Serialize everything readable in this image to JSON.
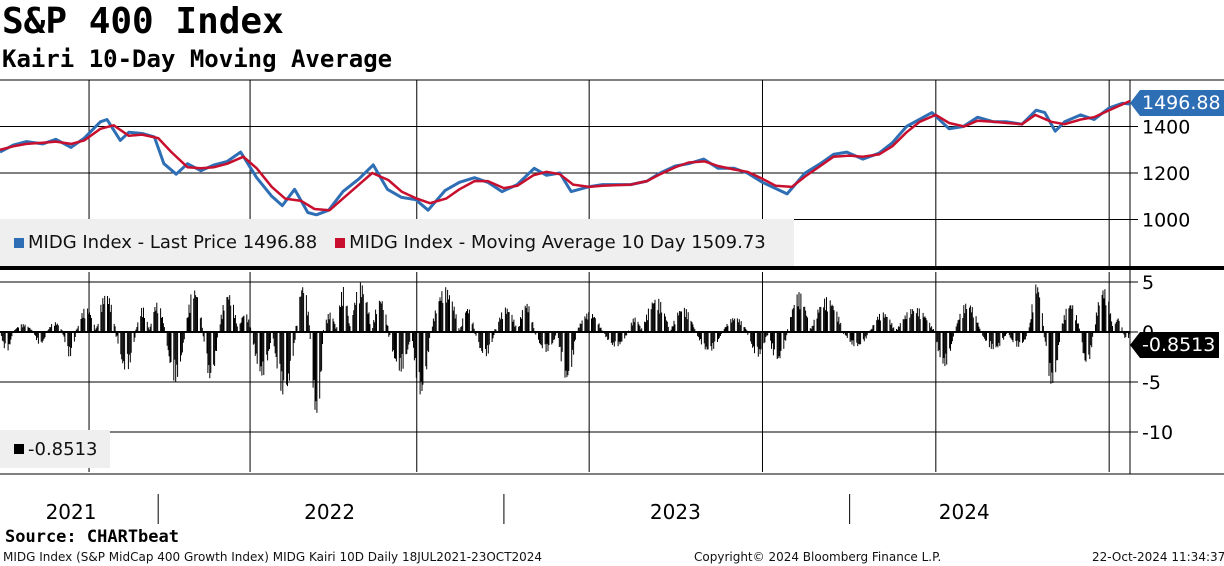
{
  "header": {
    "title": "S&P 400 Index",
    "subtitle": "Kairi 10-Day Moving Average"
  },
  "footer": {
    "source": "Source: CHARTbeat",
    "description": "MIDG Index (S&P MidCap 400 Growth Index) MIDG Kairi 10D  Daily 18JUL2021-23OCT2024",
    "copyright": "Copyright© 2024 Bloomberg Finance L.P.",
    "timestamp": "22-Oct-2024 11:34:37"
  },
  "colors": {
    "price": "#2e6eb5",
    "ma": "#c8102e",
    "kairi": "#000000",
    "grid": "#000000",
    "legend_bg": "#efefef",
    "price_badge_bg": "#2e6eb5",
    "ma_badge_bg": "#c8102e",
    "kairi_badge_bg": "#000000"
  },
  "chart_data": [
    {
      "type": "line",
      "panel": "price",
      "ylim": [
        800,
        1600
      ],
      "yticks": [
        1000,
        1200,
        1400
      ],
      "ytick_labels": [
        "1000",
        "1200",
        "1400"
      ],
      "grid": true,
      "legend_position": "bottom-left",
      "x_years": [
        "2021",
        "2022",
        "2023",
        "2024"
      ],
      "x_range": [
        "2021-07-18",
        "2024-10-23"
      ],
      "series": [
        {
          "name": "MIDG Index - Last Price 1496.88",
          "color": "#2e6eb5",
          "last_value_label": "1496.88",
          "x": [
            "2021-07-18",
            "2021-08-01",
            "2021-08-15",
            "2021-09-01",
            "2021-09-15",
            "2021-10-01",
            "2021-10-15",
            "2021-11-01",
            "2021-11-08",
            "2021-11-22",
            "2021-12-01",
            "2021-12-15",
            "2021-12-28",
            "2022-01-07",
            "2022-01-20",
            "2022-02-01",
            "2022-02-15",
            "2022-03-01",
            "2022-03-15",
            "2022-03-29",
            "2022-04-15",
            "2022-05-01",
            "2022-05-12",
            "2022-05-25",
            "2022-06-08",
            "2022-06-17",
            "2022-06-30",
            "2022-07-15",
            "2022-08-01",
            "2022-08-16",
            "2022-08-31",
            "2022-09-15",
            "2022-09-30",
            "2022-10-13",
            "2022-10-31",
            "2022-11-15",
            "2022-12-01",
            "2022-12-15",
            "2022-12-30",
            "2023-01-15",
            "2023-02-02",
            "2023-02-15",
            "2023-03-01",
            "2023-03-13",
            "2023-03-31",
            "2023-04-15",
            "2023-05-01",
            "2023-05-15",
            "2023-06-01",
            "2023-06-15",
            "2023-07-01",
            "2023-07-15",
            "2023-07-31",
            "2023-08-15",
            "2023-09-01",
            "2023-09-15",
            "2023-10-01",
            "2023-10-27",
            "2023-11-15",
            "2023-12-01",
            "2023-12-15",
            "2023-12-29",
            "2024-01-15",
            "2024-02-01",
            "2024-02-15",
            "2024-03-01",
            "2024-03-28",
            "2024-04-15",
            "2024-04-30",
            "2024-05-15",
            "2024-06-01",
            "2024-06-15",
            "2024-07-01",
            "2024-07-16",
            "2024-07-25",
            "2024-08-05",
            "2024-08-15",
            "2024-09-01",
            "2024-09-15",
            "2024-10-01",
            "2024-10-15",
            "2024-10-23"
          ],
          "values": [
            1290,
            1320,
            1335,
            1325,
            1345,
            1310,
            1350,
            1420,
            1430,
            1340,
            1375,
            1370,
            1355,
            1240,
            1195,
            1240,
            1210,
            1235,
            1250,
            1290,
            1180,
            1100,
            1060,
            1130,
            1030,
            1020,
            1040,
            1120,
            1175,
            1235,
            1130,
            1095,
            1085,
            1040,
            1125,
            1160,
            1180,
            1160,
            1120,
            1150,
            1220,
            1190,
            1200,
            1120,
            1140,
            1150,
            1150,
            1150,
            1165,
            1200,
            1230,
            1240,
            1260,
            1220,
            1220,
            1200,
            1160,
            1110,
            1200,
            1240,
            1280,
            1290,
            1260,
            1285,
            1330,
            1400,
            1460,
            1390,
            1400,
            1440,
            1420,
            1420,
            1410,
            1470,
            1460,
            1380,
            1420,
            1450,
            1430,
            1480,
            1500,
            1496.88
          ]
        },
        {
          "name": "MIDG Index - Moving Average 10 Day 1509.73",
          "color": "#c8102e",
          "last_value_label": "1509.73",
          "x": [
            "2021-07-18",
            "2021-08-01",
            "2021-08-15",
            "2021-09-01",
            "2021-09-15",
            "2021-10-01",
            "2021-10-15",
            "2021-11-01",
            "2021-11-15",
            "2021-12-01",
            "2021-12-15",
            "2022-01-01",
            "2022-01-15",
            "2022-02-01",
            "2022-02-15",
            "2022-03-01",
            "2022-03-15",
            "2022-04-01",
            "2022-04-15",
            "2022-05-01",
            "2022-05-15",
            "2022-06-01",
            "2022-06-15",
            "2022-07-01",
            "2022-07-15",
            "2022-08-01",
            "2022-08-15",
            "2022-09-01",
            "2022-09-15",
            "2022-10-01",
            "2022-10-15",
            "2022-11-01",
            "2022-11-15",
            "2022-12-01",
            "2022-12-15",
            "2023-01-01",
            "2023-01-15",
            "2023-02-01",
            "2023-02-15",
            "2023-03-01",
            "2023-03-15",
            "2023-04-01",
            "2023-04-15",
            "2023-05-01",
            "2023-05-15",
            "2023-06-01",
            "2023-06-15",
            "2023-07-01",
            "2023-07-15",
            "2023-08-01",
            "2023-08-15",
            "2023-09-01",
            "2023-09-15",
            "2023-10-01",
            "2023-10-15",
            "2023-11-01",
            "2023-11-15",
            "2023-12-01",
            "2023-12-15",
            "2024-01-01",
            "2024-01-15",
            "2024-02-01",
            "2024-02-15",
            "2024-03-01",
            "2024-03-15",
            "2024-04-01",
            "2024-04-15",
            "2024-05-01",
            "2024-05-15",
            "2024-06-01",
            "2024-06-15",
            "2024-07-01",
            "2024-07-15",
            "2024-08-01",
            "2024-08-15",
            "2024-09-01",
            "2024-09-15",
            "2024-10-01",
            "2024-10-23"
          ],
          "values": [
            1300,
            1315,
            1325,
            1330,
            1335,
            1325,
            1340,
            1390,
            1405,
            1360,
            1365,
            1350,
            1290,
            1225,
            1220,
            1225,
            1240,
            1270,
            1220,
            1140,
            1090,
            1080,
            1045,
            1040,
            1090,
            1150,
            1200,
            1170,
            1120,
            1090,
            1070,
            1090,
            1130,
            1165,
            1165,
            1135,
            1145,
            1190,
            1205,
            1195,
            1150,
            1140,
            1145,
            1148,
            1150,
            1165,
            1195,
            1225,
            1245,
            1250,
            1230,
            1215,
            1205,
            1175,
            1145,
            1140,
            1185,
            1230,
            1270,
            1275,
            1270,
            1280,
            1315,
            1375,
            1420,
            1450,
            1415,
            1400,
            1425,
            1420,
            1415,
            1410,
            1450,
            1420,
            1410,
            1430,
            1440,
            1470,
            1509.73
          ]
        }
      ]
    },
    {
      "type": "bar",
      "panel": "kairi",
      "ylim": [
        -14,
        6
      ],
      "yticks": [
        5,
        0,
        -5,
        -10
      ],
      "ytick_labels": [
        "5",
        "0",
        "-5",
        "-10"
      ],
      "grid": true,
      "legend_position": "bottom-left",
      "series": [
        {
          "name": "-0.8513",
          "color": "#000000",
          "last_value_label": "-0.8513",
          "segments": [
            {
              "from": "2021-07-18",
              "to": "2021-07-31",
              "amp": -2.0
            },
            {
              "from": "2021-07-31",
              "to": "2021-08-22",
              "amp": 0.8
            },
            {
              "from": "2021-08-22",
              "to": "2021-09-05",
              "amp": -1.3
            },
            {
              "from": "2021-09-05",
              "to": "2021-09-22",
              "amp": 1.0
            },
            {
              "from": "2021-09-22",
              "to": "2021-10-06",
              "amp": -2.5
            },
            {
              "from": "2021-10-06",
              "to": "2021-10-27",
              "amp": 2.5
            },
            {
              "from": "2021-10-27",
              "to": "2021-11-17",
              "amp": 4.0
            },
            {
              "from": "2021-11-17",
              "to": "2021-12-08",
              "amp": -4.0
            },
            {
              "from": "2021-12-08",
              "to": "2021-12-22",
              "amp": 2.5
            },
            {
              "from": "2021-12-22",
              "to": "2022-01-08",
              "amp": 3.0
            },
            {
              "from": "2022-01-08",
              "to": "2022-01-29",
              "amp": -5.0
            },
            {
              "from": "2022-01-29",
              "to": "2022-02-17",
              "amp": 4.5
            },
            {
              "from": "2022-02-17",
              "to": "2022-03-05",
              "amp": -5.0
            },
            {
              "from": "2022-03-05",
              "to": "2022-03-26",
              "amp": 4.0
            },
            {
              "from": "2022-03-26",
              "to": "2022-04-09",
              "amp": 2.0
            },
            {
              "from": "2022-04-09",
              "to": "2022-05-01",
              "amp": -4.5
            },
            {
              "from": "2022-05-01",
              "to": "2022-05-26",
              "amp": -6.5
            },
            {
              "from": "2022-05-26",
              "to": "2022-06-10",
              "amp": 5.0
            },
            {
              "from": "2022-06-10",
              "to": "2022-06-24",
              "amp": -9.0
            },
            {
              "from": "2022-06-24",
              "to": "2022-07-08",
              "amp": 2.0
            },
            {
              "from": "2022-07-08",
              "to": "2022-07-22",
              "amp": 4.5
            },
            {
              "from": "2022-07-22",
              "to": "2022-08-14",
              "amp": 5.0
            },
            {
              "from": "2022-08-14",
              "to": "2022-09-01",
              "amp": 3.5
            },
            {
              "from": "2022-09-01",
              "to": "2022-09-25",
              "amp": -4.0
            },
            {
              "from": "2022-09-25",
              "to": "2022-10-15",
              "amp": -6.5
            },
            {
              "from": "2022-10-15",
              "to": "2022-11-15",
              "amp": 4.5
            },
            {
              "from": "2022-11-15",
              "to": "2022-12-01",
              "amp": 2.5
            },
            {
              "from": "2022-12-01",
              "to": "2022-12-22",
              "amp": -2.5
            },
            {
              "from": "2022-12-22",
              "to": "2023-01-15",
              "amp": 2.5
            },
            {
              "from": "2023-01-15",
              "to": "2023-02-02",
              "amp": 3.0
            },
            {
              "from": "2023-02-02",
              "to": "2023-02-26",
              "amp": -2.0
            },
            {
              "from": "2023-02-26",
              "to": "2023-03-18",
              "amp": -5.0
            },
            {
              "from": "2023-03-18",
              "to": "2023-04-15",
              "amp": 2.0
            },
            {
              "from": "2023-04-15",
              "to": "2023-05-12",
              "amp": -1.5
            },
            {
              "from": "2023-05-12",
              "to": "2023-05-26",
              "amp": 1.5
            },
            {
              "from": "2023-05-26",
              "to": "2023-06-25",
              "amp": 3.5
            },
            {
              "from": "2023-06-25",
              "to": "2023-07-22",
              "amp": 2.5
            },
            {
              "from": "2023-07-22",
              "to": "2023-08-19",
              "amp": -2.0
            },
            {
              "from": "2023-08-19",
              "to": "2023-09-15",
              "amp": 1.5
            },
            {
              "from": "2023-09-15",
              "to": "2023-10-06",
              "amp": -2.5
            },
            {
              "from": "2023-10-06",
              "to": "2023-10-27",
              "amp": -3.0
            },
            {
              "from": "2023-10-27",
              "to": "2023-11-20",
              "amp": 4.0
            },
            {
              "from": "2023-11-20",
              "to": "2023-12-25",
              "amp": 3.5
            },
            {
              "from": "2023-12-25",
              "to": "2024-01-22",
              "amp": -1.5
            },
            {
              "from": "2024-01-22",
              "to": "2024-02-18",
              "amp": 2.0
            },
            {
              "from": "2024-02-18",
              "to": "2024-03-30",
              "amp": 2.5
            },
            {
              "from": "2024-03-30",
              "to": "2024-04-20",
              "amp": -3.5
            },
            {
              "from": "2024-04-20",
              "to": "2024-05-18",
              "amp": 3.0
            },
            {
              "from": "2024-05-18",
              "to": "2024-06-15",
              "amp": -1.8
            },
            {
              "from": "2024-06-15",
              "to": "2024-07-08",
              "amp": -1.5
            },
            {
              "from": "2024-07-08",
              "to": "2024-07-24",
              "amp": 5.0
            },
            {
              "from": "2024-07-24",
              "to": "2024-08-10",
              "amp": -5.5
            },
            {
              "from": "2024-08-10",
              "to": "2024-08-31",
              "amp": 3.0
            },
            {
              "from": "2024-08-31",
              "to": "2024-09-14",
              "amp": -3.5
            },
            {
              "from": "2024-09-14",
              "to": "2024-10-05",
              "amp": 4.5
            },
            {
              "from": "2024-10-05",
              "to": "2024-10-15",
              "amp": 1.5
            },
            {
              "from": "2024-10-15",
              "to": "2024-10-23",
              "amp": -0.85
            }
          ]
        }
      ]
    }
  ]
}
